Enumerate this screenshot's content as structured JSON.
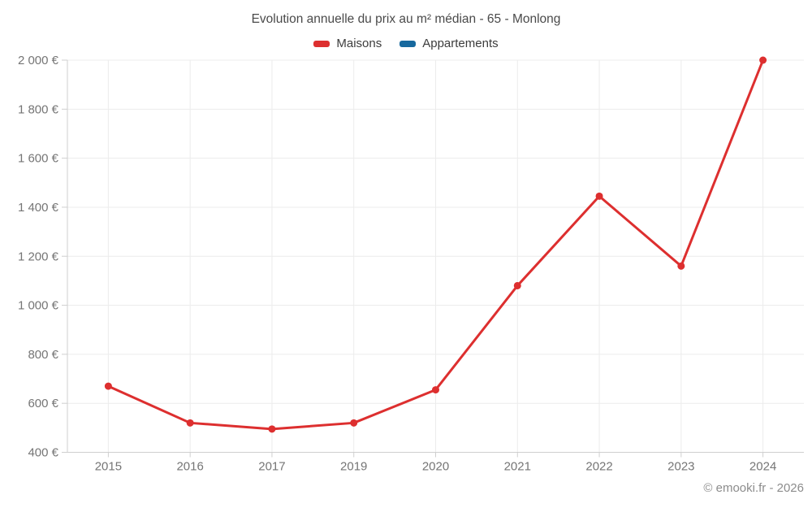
{
  "title": "Evolution annuelle du prix au m² médian - 65 - Monlong",
  "legend": [
    {
      "label": "Maisons",
      "color": "#dd2f2f"
    },
    {
      "label": "Appartements",
      "color": "#17699e"
    }
  ],
  "copyright": "© emooki.fr - 2026",
  "colors": {
    "maisons": "#dd2f2f",
    "appartements": "#17699e",
    "grid": "#ececec",
    "axis": "#cfcfcf",
    "tick_text": "#757575",
    "title_text": "#4a4a4a",
    "legend_text": "#3c3c3c",
    "copyright_text": "#8c8c8c",
    "background": "#ffffff"
  },
  "chart_data": {
    "type": "line",
    "title": "Evolution annuelle du prix au m² médian - 65 - Monlong",
    "xlabel": "",
    "ylabel": "",
    "categories": [
      "2015",
      "2016",
      "2017",
      "2019",
      "2020",
      "2021",
      "2022",
      "2023",
      "2024"
    ],
    "series": [
      {
        "name": "Maisons",
        "color": "#dd2f2f",
        "values": [
          670,
          520,
          495,
          520,
          655,
          1080,
          1445,
          1160,
          2000
        ]
      },
      {
        "name": "Appartements",
        "color": "#17699e",
        "values": []
      }
    ],
    "ylim": [
      400,
      2000
    ],
    "ytick_step": 200,
    "ytick_labels": [
      "400 €",
      "600 €",
      "800 €",
      "1 000 €",
      "1 200 €",
      "1 400 €",
      "1 600 €",
      "1 800 €",
      "2 000 €"
    ],
    "currency_suffix": " €",
    "grid": true,
    "legend_position": "top",
    "marker": "circle",
    "marker_radius": 4.5,
    "line_width": 3
  }
}
